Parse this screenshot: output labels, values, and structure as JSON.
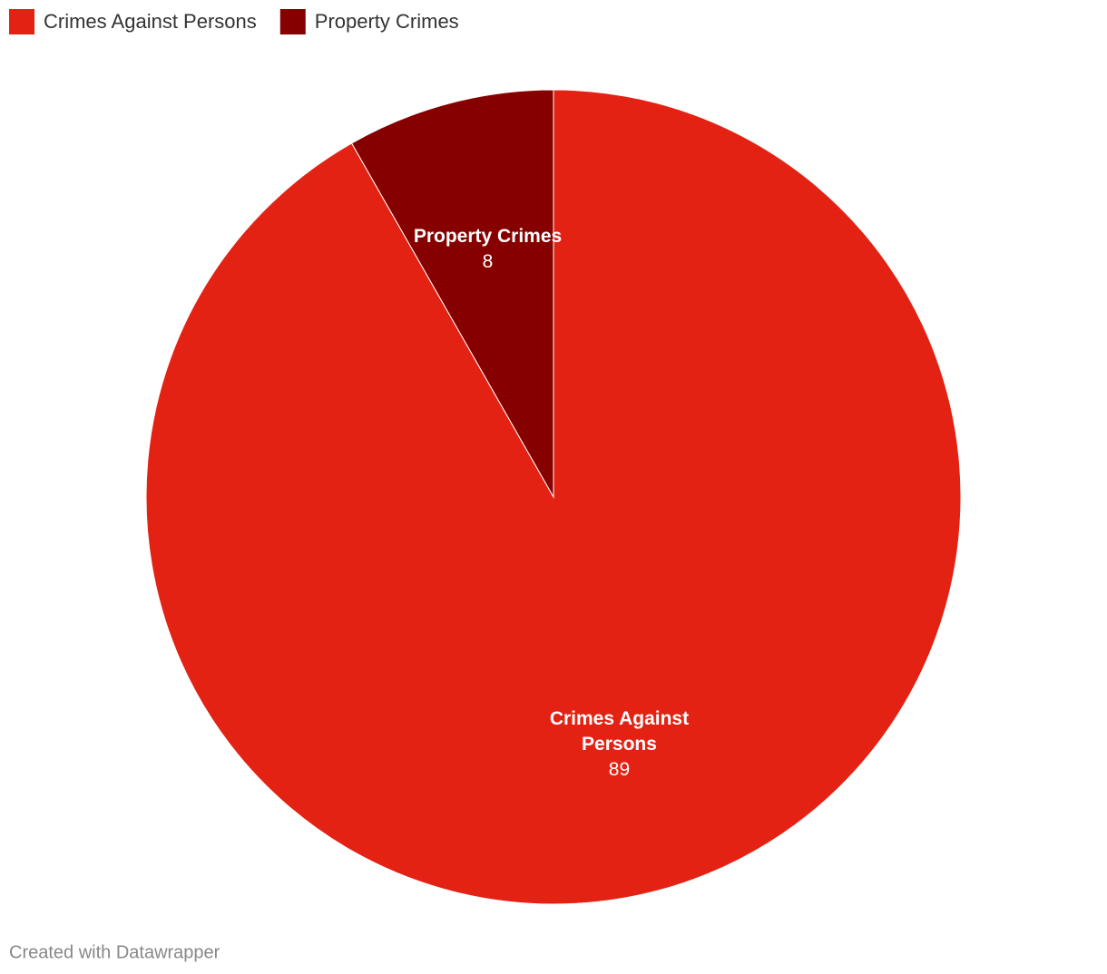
{
  "chart_data": {
    "type": "pie",
    "categories": [
      "Crimes Against Persons",
      "Property Crimes"
    ],
    "values": [
      89,
      8
    ],
    "colors": [
      "#e32214",
      "#870000"
    ],
    "credit": "Created with Datawrapper"
  }
}
